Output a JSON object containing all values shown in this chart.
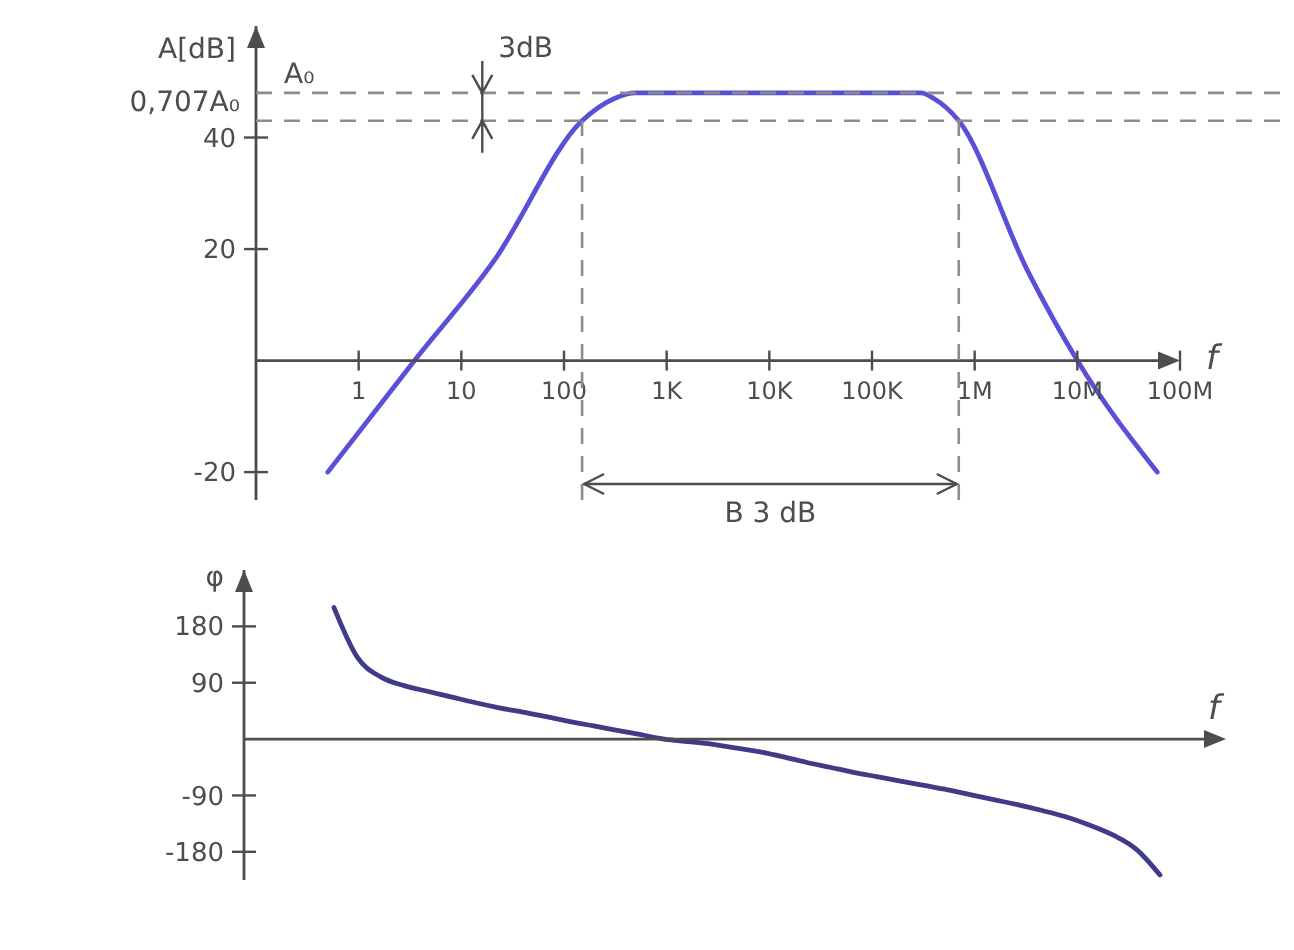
{
  "chart_data": [
    {
      "type": "line",
      "xlabel": "f",
      "ylabel": "A[dB]",
      "log": "x",
      "xlim": [
        0.1,
        100000000
      ],
      "ylim": [
        -25,
        60
      ],
      "xticks": [
        1,
        10,
        100,
        {
          "value": 1000,
          "label": "1K"
        },
        {
          "value": 10000,
          "label": "10K"
        },
        {
          "value": 100000,
          "label": "100K"
        },
        {
          "value": 1000000,
          "label": "1M"
        },
        {
          "value": 10000000,
          "label": "10M"
        },
        {
          "value": 100000000,
          "label": "100M"
        }
      ],
      "yticks": [
        -20,
        20,
        40
      ],
      "x": [
        0.5,
        3.5,
        21,
        150,
        310,
        500,
        300000,
        400000,
        700000,
        3300000,
        10000000,
        60000000
      ],
      "values": [
        -20,
        0,
        18,
        43,
        47,
        48,
        48,
        47,
        43,
        16,
        0,
        -20
      ],
      "color": "#5a50d8",
      "ref_lines": [
        {
          "axis": "y",
          "value": 48,
          "label": "A₀",
          "color": "#8c8c8c",
          "line_style": "dashed"
        },
        {
          "axis": "y",
          "value": 43,
          "label": "0,707A₀",
          "color": "#8c8c8c",
          "line_style": "dashed"
        },
        {
          "axis": "x",
          "value": 150,
          "color": "#8c8c8c",
          "line_style": "dashed"
        },
        {
          "axis": "x",
          "value": 700000,
          "color": "#8c8c8c",
          "line_style": "dashed"
        }
      ],
      "annotations": [
        {
          "text": "3dB",
          "x": 16,
          "y": 48
        },
        "B 3 dB"
      ]
    },
    {
      "type": "line",
      "xlabel": "f",
      "ylabel": "φ",
      "ylim": [
        -225,
        270
      ],
      "yticks": [
        -180,
        -90,
        90,
        180
      ],
      "tick_labels": "y",
      "categories": [
        null,
        null,
        null,
        null,
        null,
        null,
        null,
        null,
        null,
        null,
        null,
        null,
        null,
        null,
        null,
        null,
        null,
        null,
        null,
        null,
        null,
        null,
        null,
        null,
        null,
        null,
        null,
        null,
        null,
        null,
        null,
        null,
        null,
        null,
        null,
        null
      ],
      "values": [
        210,
        130,
        99,
        85,
        76,
        67,
        58,
        50,
        43,
        36,
        28,
        21,
        14,
        7,
        0,
        -4,
        -8,
        -14,
        -20,
        -28,
        -37,
        -45,
        -53,
        -60,
        -67,
        -74,
        -81,
        -89,
        -97,
        -105,
        -114,
        -124,
        -137,
        -153,
        -176,
        -217
      ],
      "color": "#3f3b88"
    }
  ]
}
